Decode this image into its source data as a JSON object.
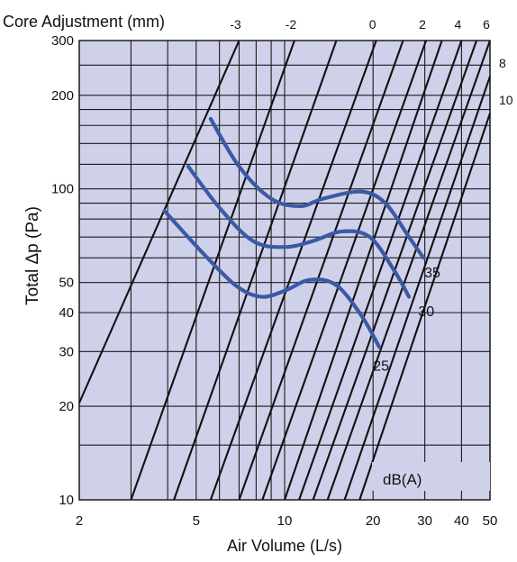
{
  "chart_data": {
    "type": "line",
    "title": "Core Adjustment (mm)",
    "xlabel": "Air Volume (L/s)",
    "ylabel": "Total Δp (Pa)",
    "xscale": "log",
    "yscale": "log",
    "xlim": [
      2,
      50
    ],
    "ylim": [
      10,
      300
    ],
    "grid": true,
    "background_color": "#cfd1ea",
    "grid_color": "#1a1a1a",
    "curve_color": "#3a5aa6",
    "x_ticks": [
      {
        "value": 2,
        "label": "2"
      },
      {
        "value": 5,
        "label": "5"
      },
      {
        "value": 10,
        "label": "10"
      },
      {
        "value": 20,
        "label": "20"
      },
      {
        "value": 30,
        "label": "30"
      },
      {
        "value": 40,
        "label": "40"
      },
      {
        "value": 50,
        "label": "50"
      }
    ],
    "y_ticks": [
      {
        "value": 10,
        "label": "10"
      },
      {
        "value": 20,
        "label": "20"
      },
      {
        "value": 30,
        "label": "30"
      },
      {
        "value": 40,
        "label": "40"
      },
      {
        "value": 50,
        "label": "50"
      },
      {
        "value": 100,
        "label": "100"
      },
      {
        "value": 200,
        "label": "200"
      },
      {
        "value": 300,
        "label": "300"
      }
    ],
    "core_adjustment_lines": [
      {
        "label": "-3",
        "points": [
          [
            2,
            20.5
          ],
          [
            7.0,
            300
          ]
        ]
      },
      {
        "label": "-2",
        "points": [
          [
            3.0,
            10
          ],
          [
            10.8,
            300
          ]
        ]
      },
      {
        "label": "",
        "points": [
          [
            4.2,
            10
          ],
          [
            15.0,
            300
          ]
        ]
      },
      {
        "label": "0",
        "points": [
          [
            5.6,
            10
          ],
          [
            20.5,
            300
          ]
        ]
      },
      {
        "label": "",
        "points": [
          [
            7.0,
            10
          ],
          [
            25.3,
            300
          ]
        ]
      },
      {
        "label": "2",
        "points": [
          [
            8.4,
            10
          ],
          [
            30.3,
            300
          ]
        ]
      },
      {
        "label": "",
        "points": [
          [
            10.0,
            10
          ],
          [
            34.3,
            300
          ]
        ]
      },
      {
        "label": "4",
        "points": [
          [
            11.2,
            10
          ],
          [
            40.0,
            300
          ]
        ]
      },
      {
        "label": "",
        "points": [
          [
            12.5,
            10
          ],
          [
            45.0,
            300
          ]
        ]
      },
      {
        "label": "6",
        "points": [
          [
            14.0,
            10
          ],
          [
            50.0,
            300
          ]
        ]
      },
      {
        "label": "8",
        "points": [
          [
            16.0,
            10
          ],
          [
            50,
            230
          ]
        ]
      },
      {
        "label": "10",
        "points": [
          [
            18.0,
            10
          ],
          [
            50,
            175
          ]
        ]
      }
    ],
    "series": [
      {
        "name": "35",
        "values": [
          [
            5.6,
            168
          ],
          [
            7.0,
            118
          ],
          [
            9.0,
            93
          ],
          [
            11.3,
            88
          ],
          [
            13.5,
            93
          ],
          [
            18.2,
            98
          ],
          [
            22.0,
            90
          ],
          [
            26.5,
            70
          ],
          [
            29.7,
            60
          ]
        ]
      },
      {
        "name": "30",
        "values": [
          [
            4.7,
            118
          ],
          [
            6.0,
            87
          ],
          [
            7.8,
            68
          ],
          [
            10.0,
            65
          ],
          [
            12.5,
            68
          ],
          [
            15.7,
            73
          ],
          [
            19.5,
            70
          ],
          [
            23.5,
            55
          ],
          [
            26.5,
            45
          ]
        ]
      },
      {
        "name": "25",
        "values": [
          [
            3.9,
            85
          ],
          [
            5.2,
            63
          ],
          [
            6.8,
            49
          ],
          [
            8.3,
            45
          ],
          [
            10.0,
            47
          ],
          [
            12.2,
            51
          ],
          [
            15.0,
            49
          ],
          [
            18.3,
            39
          ],
          [
            21.0,
            31
          ]
        ]
      }
    ],
    "series_label_positions": [
      [
        29.9,
        52
      ],
      [
        28.5,
        39
      ],
      [
        20.0,
        26
      ]
    ],
    "legend_text": "dB(A)"
  }
}
